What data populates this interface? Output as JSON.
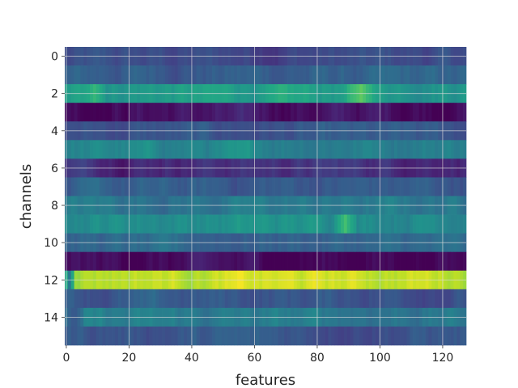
{
  "chart_data": {
    "type": "heatmap",
    "title": "",
    "xlabel": "features",
    "ylabel": "channels",
    "xlim": [
      -0.5,
      127.5
    ],
    "ylim": [
      15.5,
      -0.5
    ],
    "xticks": [
      0,
      20,
      40,
      60,
      80,
      100,
      120
    ],
    "yticks": [
      0,
      2,
      4,
      6,
      8,
      10,
      12,
      14
    ],
    "grid": true,
    "colormap": "viridis",
    "n_channels": 16,
    "n_features": 128,
    "channel_levels": [
      0.22,
      0.3,
      0.55,
      0.05,
      0.25,
      0.45,
      0.15,
      0.28,
      0.4,
      0.5,
      0.32,
      0.02,
      0.92,
      0.27,
      0.4,
      0.27
    ],
    "highlights": [
      {
        "channel": 2,
        "from": 90,
        "to": 98,
        "level": 0.75
      },
      {
        "channel": 2,
        "from": 6,
        "to": 12,
        "level": 0.66
      },
      {
        "channel": 9,
        "from": 86,
        "to": 92,
        "level": 0.7
      },
      {
        "channel": 12,
        "from": 0,
        "to": 2,
        "level": 0.4
      },
      {
        "channel": 14,
        "from": 0,
        "to": 5,
        "level": 0.26
      }
    ]
  }
}
